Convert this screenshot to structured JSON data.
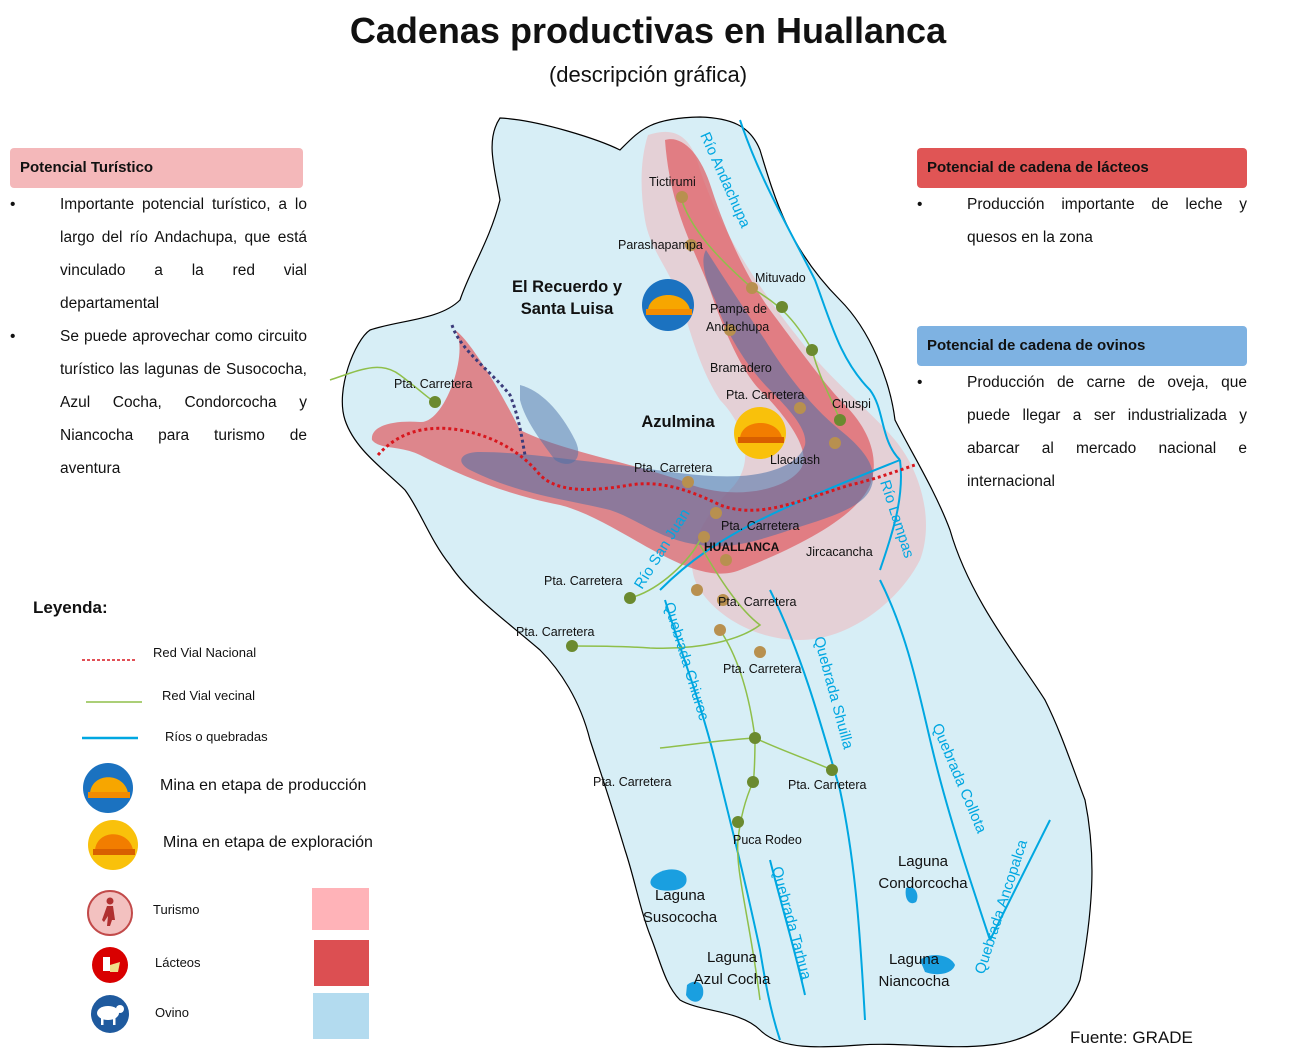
{
  "header": {
    "title": "Cadenas productivas en Huallanca",
    "subtitle": "(descripción gráfica)"
  },
  "panels": {
    "turistico": {
      "heading": "Potencial Turístico",
      "bullets": [
        "Importante potencial turístico, a lo largo del río Andachupa, que está vinculado a la red vial departamental",
        "Se puede aprovechar como circuito turístico las lagunas de Susococha, Azul Cocha, Condorcocha y Niancocha para turismo de aventura"
      ]
    },
    "lacteos": {
      "heading": "Potencial de cadena de lácteos",
      "bullets": [
        "Producción importante de leche y quesos en la zona"
      ]
    },
    "ovinos": {
      "heading": "Potencial de cadena de ovinos",
      "bullets": [
        "Producción de carne de oveja, que puede llegar a ser industrializada y abarcar al mercado nacional e internacional"
      ]
    }
  },
  "map": {
    "colors": {
      "territory": "#d7eef6",
      "tourism_zone": "#f5aaaf",
      "dairy_zone": "#e05a5f",
      "sheep_zone": "#5a6f98",
      "river": "#00a7e1",
      "local_road": "#8fbf4a",
      "national_road": "#d8171e"
    },
    "mines": {
      "production": "El Recuerdo y Santa Luisa",
      "exploration": "Azulmina"
    },
    "places": {
      "tictirumi": "Tictirumi",
      "parashapampa": "Parashapampa",
      "mituvado": "Mituvado",
      "pampa_andachupa_1": "Pampa de",
      "pampa_andachupa_2": "Andachupa",
      "bramadero": "Bramadero",
      "chuspi": "Chuspi",
      "llacuash": "Llacuash",
      "jircacancha": "Jircacancha",
      "huallanca": "HUALLANCA",
      "puca_rodeo": "Puca Rodeo",
      "pta_carretera": "Pta. Carretera"
    },
    "rivers": {
      "andachupa": "Río Andachupa",
      "lampas": "Río Lampas",
      "san_juan": "Río San Juan",
      "chiuroc": "Quebrada Chiuroc",
      "shuilla": "Quebrada Shuilla",
      "collota": "Quebrada Collota",
      "tarhua": "Quebrada Tarhua",
      "ancopalca": "Quebrada Ancopalca"
    },
    "lagoons": {
      "susococha_1": "Laguna",
      "susococha_2": "Susococha",
      "azulcocha_1": "Laguna",
      "azulcocha_2": "Azul Cocha",
      "condorcocha_1": "Laguna",
      "condorcocha_2": "Condorcocha",
      "niancocha_1": "Laguna",
      "niancocha_2": "Niancocha"
    }
  },
  "legend": {
    "title": "Leyenda:",
    "red_vial_nacional": "Red Vial Nacional",
    "red_vial_vecinal": "Red Vial vecinal",
    "rios": "Ríos o quebradas",
    "mina_produccion": "Mina en etapa de producción",
    "mina_exploracion": "Mina en etapa de exploración",
    "turismo": "Turismo",
    "lacteos": "Lácteos",
    "ovino": "Ovino",
    "colors": {
      "turismo": "#ffb3b8",
      "lacteos": "#dc4f52",
      "ovino": "#b3dbef"
    }
  },
  "source": "Fuente: GRADE"
}
